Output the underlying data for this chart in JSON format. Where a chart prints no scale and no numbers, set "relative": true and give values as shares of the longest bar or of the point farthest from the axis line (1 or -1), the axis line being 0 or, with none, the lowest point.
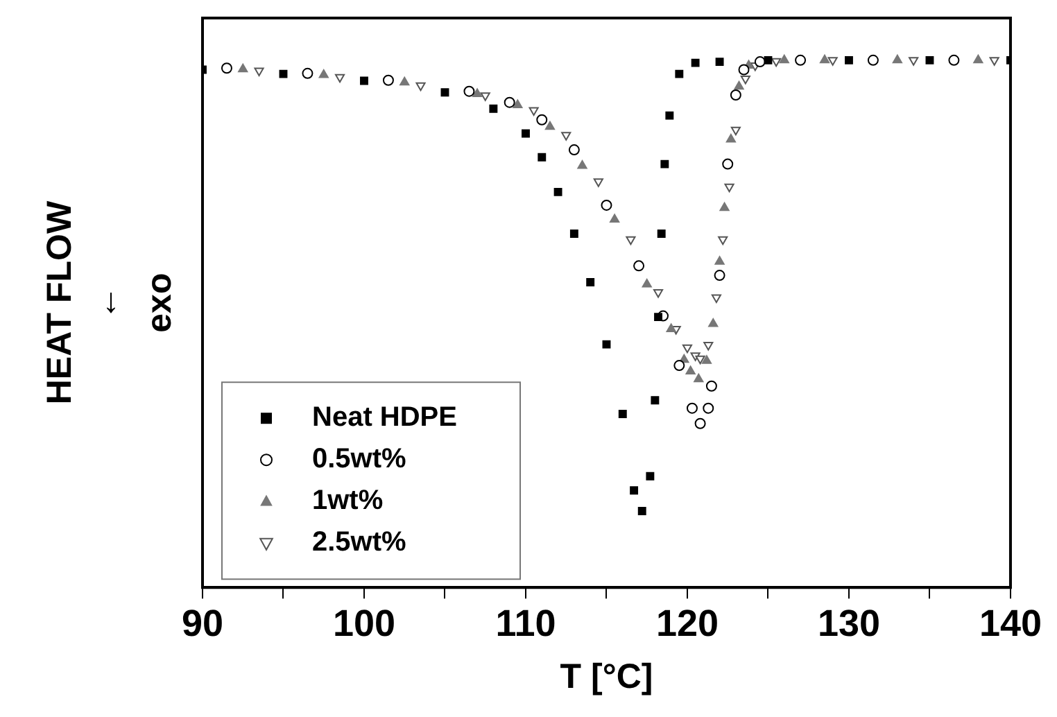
{
  "chart_data": {
    "type": "scatter",
    "relative": true,
    "xlabel": "T [°C]",
    "ylabel": "HEAT FLOW\n↓\nexo",
    "xlim": [
      90,
      140
    ],
    "xticks": [
      90,
      {
        "value": 95,
        "label": null
      },
      100,
      {
        "value": 105,
        "label": null
      },
      110,
      {
        "value": 115,
        "label": null
      },
      120,
      {
        "value": 125,
        "label": null
      },
      130,
      {
        "value": 135,
        "label": null
      },
      140
    ],
    "grid": false,
    "legend": "bottom left",
    "series": [
      {
        "name": "Neat HDPE",
        "color": "#000000",
        "marker": "square",
        "x": [
          90,
          95,
          100,
          105,
          108,
          110,
          111,
          112,
          113,
          114,
          115,
          116,
          116.7,
          117.2,
          117.7,
          118,
          118.2,
          118.4,
          118.6,
          118.9,
          119.5,
          120.5,
          122,
          125,
          130,
          135,
          140
        ],
        "values": [
          0.982,
          0.974,
          0.961,
          0.939,
          0.908,
          0.861,
          0.816,
          0.75,
          0.671,
          0.579,
          0.461,
          0.329,
          0.184,
          0.145,
          0.211,
          0.355,
          0.513,
          0.671,
          0.803,
          0.895,
          0.974,
          0.995,
          0.997,
          1,
          1,
          1,
          1
        ]
      },
      {
        "name": "0.5wt%",
        "color": "#000000",
        "marker": "circle",
        "x": [
          91.5,
          96.5,
          101.5,
          106.5,
          109,
          111,
          113,
          115,
          117,
          118.5,
          119.5,
          120.3,
          120.8,
          121.3,
          121.5,
          122,
          122.5,
          123,
          123.5,
          124.5,
          127,
          131.5,
          136.5
        ],
        "values": [
          0.985,
          0.975,
          0.962,
          0.941,
          0.92,
          0.887,
          0.83,
          0.725,
          0.61,
          0.515,
          0.421,
          0.34,
          0.311,
          0.34,
          0.382,
          0.592,
          0.803,
          0.934,
          0.982,
          0.997,
          1,
          1,
          1
        ]
      },
      {
        "name": "1wt%",
        "color": "#777777",
        "marker": "triangle",
        "x": [
          92.5,
          97.5,
          102.5,
          107,
          109.5,
          111.5,
          113.5,
          115.5,
          117.5,
          119,
          119.8,
          120.2,
          120.7,
          121.2,
          121.6,
          122,
          122.3,
          122.7,
          123.2,
          123.8,
          126,
          128.5,
          133,
          138
        ],
        "values": [
          0.983,
          0.972,
          0.958,
          0.936,
          0.915,
          0.874,
          0.8,
          0.698,
          0.575,
          0.49,
          0.432,
          0.41,
          0.395,
          0.43,
          0.5,
          0.618,
          0.72,
          0.85,
          0.95,
          0.99,
          1,
          1,
          1,
          1
        ]
      },
      {
        "name": "2.5wt%",
        "color": "#555555",
        "marker": "triangle-down",
        "x": [
          93.5,
          98.5,
          103.5,
          107.5,
          110.5,
          112.5,
          114.5,
          116.5,
          118.2,
          119.3,
          120,
          120.5,
          120.8,
          121.3,
          121.8,
          122.2,
          122.6,
          123,
          123.6,
          124.2,
          125.5,
          129,
          134,
          139
        ],
        "values": [
          0.98,
          0.968,
          0.952,
          0.933,
          0.905,
          0.858,
          0.77,
          0.66,
          0.56,
          0.49,
          0.455,
          0.44,
          0.434,
          0.46,
          0.55,
          0.66,
          0.76,
          0.868,
          0.965,
          0.99,
          0.998,
          1,
          1,
          1
        ]
      }
    ]
  }
}
